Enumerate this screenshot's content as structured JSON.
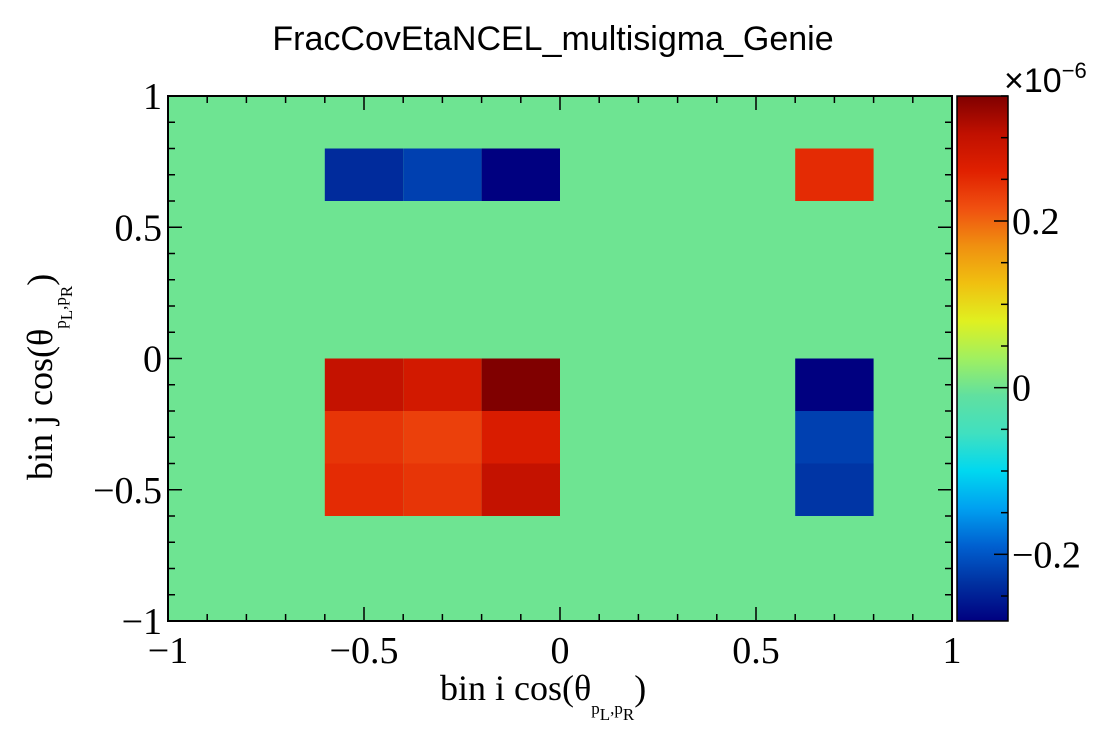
{
  "chart_data": {
    "type": "heatmap",
    "title": "FracCovEtaNCEL_multisigma_Genie",
    "xlabel": "bin i cos(θ",
    "ylabel": "bin j cos(θ",
    "label_sub_1": "p",
    "label_sub_1_index": "L",
    "label_sub_2": "p",
    "label_sub_2_index": "R",
    "label_close": ")",
    "xlim": [
      -1,
      1
    ],
    "ylim": [
      -1,
      1
    ],
    "x_ticks": [
      {
        "value": -1,
        "label": "−1"
      },
      {
        "value": -0.5,
        "label": "−0.5"
      },
      {
        "value": 0,
        "label": "0"
      },
      {
        "value": 0.5,
        "label": "0.5"
      },
      {
        "value": 1,
        "label": "1"
      }
    ],
    "y_ticks": [
      {
        "value": -1,
        "label": "−1"
      },
      {
        "value": -0.5,
        "label": "−0.5"
      },
      {
        "value": 0,
        "label": "0"
      },
      {
        "value": 0.5,
        "label": "0.5"
      },
      {
        "value": 1,
        "label": "1"
      }
    ],
    "background_value": 0,
    "x_edges": [
      -1,
      -0.8,
      -0.6,
      -0.4,
      -0.2,
      0,
      0.2,
      0.4,
      0.6,
      0.8,
      1
    ],
    "y_edges": [
      -1,
      -0.8,
      -0.6,
      -0.4,
      -0.2,
      0,
      0.2,
      0.4,
      0.6,
      0.8,
      1
    ],
    "cells": [
      {
        "x": [
          -0.6,
          -0.4
        ],
        "y": [
          0.6,
          0.8
        ],
        "value": -0.24
      },
      {
        "x": [
          -0.4,
          -0.2
        ],
        "y": [
          0.6,
          0.8
        ],
        "value": -0.22
      },
      {
        "x": [
          -0.2,
          0.0
        ],
        "y": [
          0.6,
          0.8
        ],
        "value": -0.28
      },
      {
        "x": [
          0.6,
          0.8
        ],
        "y": [
          0.6,
          0.8
        ],
        "value": 0.25
      },
      {
        "x": [
          -0.6,
          -0.4
        ],
        "y": [
          -0.2,
          0.0
        ],
        "value": 0.3
      },
      {
        "x": [
          -0.4,
          -0.2
        ],
        "y": [
          -0.2,
          0.0
        ],
        "value": 0.28
      },
      {
        "x": [
          -0.2,
          0.0
        ],
        "y": [
          -0.2,
          0.0
        ],
        "value": 0.35
      },
      {
        "x": [
          0.6,
          0.8
        ],
        "y": [
          -0.2,
          0.0
        ],
        "value": -0.28
      },
      {
        "x": [
          -0.6,
          -0.4
        ],
        "y": [
          -0.4,
          -0.2
        ],
        "value": 0.24
      },
      {
        "x": [
          -0.4,
          -0.2
        ],
        "y": [
          -0.4,
          -0.2
        ],
        "value": 0.23
      },
      {
        "x": [
          -0.2,
          0.0
        ],
        "y": [
          -0.4,
          -0.2
        ],
        "value": 0.27
      },
      {
        "x": [
          0.6,
          0.8
        ],
        "y": [
          -0.4,
          -0.2
        ],
        "value": -0.22
      },
      {
        "x": [
          -0.6,
          -0.4
        ],
        "y": [
          -0.6,
          -0.4
        ],
        "value": 0.25
      },
      {
        "x": [
          -0.4,
          -0.2
        ],
        "y": [
          -0.6,
          -0.4
        ],
        "value": 0.24
      },
      {
        "x": [
          -0.2,
          0.0
        ],
        "y": [
          -0.6,
          -0.4
        ],
        "value": 0.3
      },
      {
        "x": [
          0.6,
          0.8
        ],
        "y": [
          -0.6,
          -0.4
        ],
        "value": -0.23
      }
    ],
    "colorbar": {
      "zlim": [
        -0.28,
        0.35
      ],
      "exponent_label": "×10",
      "exponent_power": "−6",
      "ticks": [
        {
          "value": -0.2,
          "label": "−0.2"
        },
        {
          "value": 0,
          "label": "0"
        },
        {
          "value": 0.2,
          "label": "0.2"
        }
      ],
      "palette": [
        "#000080",
        "#0030a0",
        "#0060d0",
        "#00a0f0",
        "#00d8f0",
        "#40e0c0",
        "#60e0a0",
        "#a0f060",
        "#e0f020",
        "#f0c010",
        "#f09010",
        "#f05010",
        "#e02000",
        "#c01000",
        "#800000"
      ]
    }
  }
}
